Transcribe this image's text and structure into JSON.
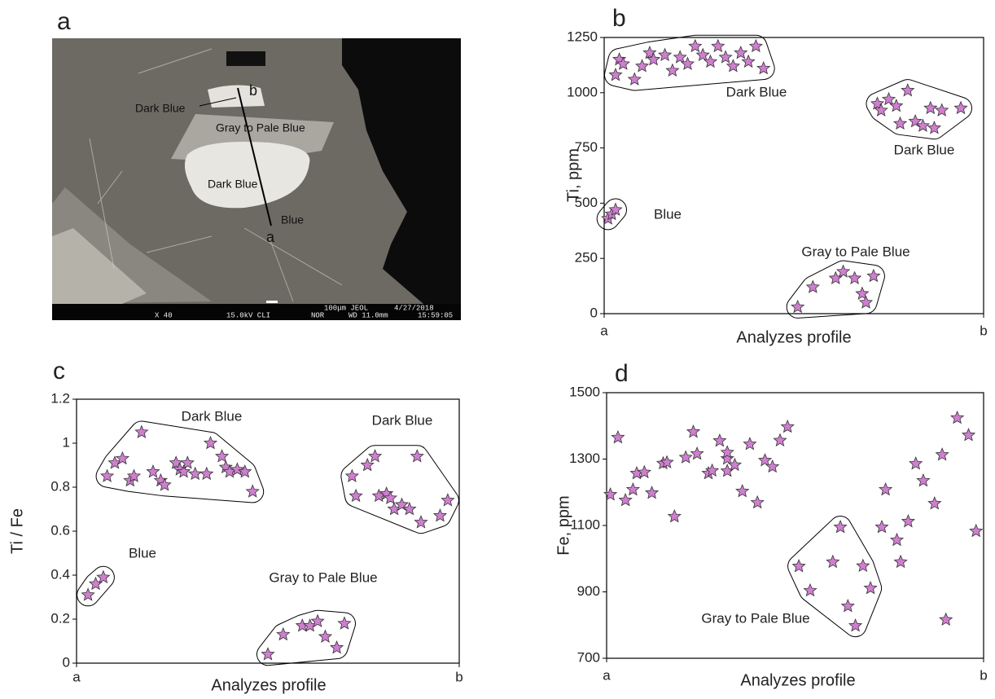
{
  "chart_data": [
    {
      "type": "micrograph",
      "panel": "a",
      "profile_start": "a",
      "profile_end": "b",
      "annotations": [
        "Dark Blue",
        "Gray to Pale Blue",
        "Dark Blue",
        "Blue"
      ],
      "footer": [
        "X 40",
        "15.0kV CLI",
        "NOR",
        "100μm JEOL",
        "WD 11.0mm",
        "4/27/2018",
        "15:59:05"
      ]
    },
    {
      "type": "scatter",
      "panel": "b",
      "ylabel": "Ti, ppm",
      "xlabel": "Analyzes profile",
      "xlim": [
        0,
        1
      ],
      "xticks": [
        {
          "value": 0,
          "label": "a"
        },
        {
          "value": 1,
          "label": "b"
        }
      ],
      "ylim": [
        0,
        1250
      ],
      "yticks": [
        0,
        250,
        500,
        750,
        1000,
        1250
      ],
      "series": [
        {
          "name": "Dark Blue",
          "color": "#cf7fcf",
          "x": [
            0.04,
            0.05,
            0.03,
            0.08,
            0.1,
            0.12,
            0.13,
            0.16,
            0.18,
            0.2,
            0.22,
            0.24,
            0.26,
            0.28,
            0.3,
            0.32,
            0.34,
            0.36,
            0.38,
            0.4,
            0.42
          ],
          "values": [
            1150,
            1130,
            1080,
            1060,
            1120,
            1180,
            1150,
            1170,
            1100,
            1160,
            1130,
            1210,
            1170,
            1140,
            1210,
            1160,
            1120,
            1180,
            1140,
            1210,
            1110
          ]
        },
        {
          "name": "Dark Blue",
          "color": "#cf7fcf",
          "x": [
            0.72,
            0.73,
            0.75,
            0.77,
            0.78,
            0.8,
            0.82,
            0.84,
            0.86,
            0.87,
            0.89,
            0.94
          ],
          "values": [
            950,
            920,
            970,
            940,
            860,
            1010,
            870,
            850,
            930,
            840,
            920,
            930
          ]
        },
        {
          "name": "Blue",
          "color": "#cf7fcf",
          "x": [
            0.01,
            0.02,
            0.03
          ],
          "values": [
            430,
            450,
            470
          ]
        },
        {
          "name": "Gray to Pale Blue",
          "color": "#cf7fcf",
          "x": [
            0.51,
            0.55,
            0.61,
            0.63,
            0.66,
            0.68,
            0.69,
            0.71
          ],
          "values": [
            30,
            120,
            160,
            190,
            160,
            90,
            50,
            170
          ]
        }
      ]
    },
    {
      "type": "scatter",
      "panel": "c",
      "ylabel": "Ti / Fe",
      "xlabel": "Analyzes profile",
      "xlim": [
        0,
        1
      ],
      "xticks": [
        {
          "value": 0,
          "label": "a"
        },
        {
          "value": 1,
          "label": "b"
        }
      ],
      "ylim": [
        0,
        1.2
      ],
      "yticks": [
        0,
        0.2,
        0.4,
        0.6,
        0.8,
        1,
        1.2
      ],
      "series": [
        {
          "name": "Dark Blue",
          "color": "#cf7fcf",
          "x": [
            0.08,
            0.1,
            0.12,
            0.14,
            0.15,
            0.17,
            0.2,
            0.22,
            0.23,
            0.26,
            0.27,
            0.28,
            0.29,
            0.31,
            0.35,
            0.34,
            0.38,
            0.39,
            0.4,
            0.42,
            0.44,
            0.46
          ],
          "values": [
            0.85,
            0.91,
            0.93,
            0.83,
            0.85,
            1.05,
            0.87,
            0.83,
            0.81,
            0.91,
            0.88,
            0.87,
            0.91,
            0.86,
            1.0,
            0.86,
            0.94,
            0.89,
            0.87,
            0.88,
            0.87,
            0.78
          ]
        },
        {
          "name": "Dark Blue",
          "color": "#cf7fcf",
          "x": [
            0.72,
            0.73,
            0.76,
            0.78,
            0.79,
            0.81,
            0.82,
            0.83,
            0.85,
            0.87,
            0.89,
            0.9,
            0.95,
            0.97
          ],
          "values": [
            0.85,
            0.76,
            0.9,
            0.94,
            0.76,
            0.77,
            0.75,
            0.7,
            0.72,
            0.7,
            0.94,
            0.64,
            0.67,
            0.74
          ]
        },
        {
          "name": "Blue",
          "color": "#cf7fcf",
          "x": [
            0.03,
            0.05,
            0.07
          ],
          "values": [
            0.31,
            0.36,
            0.39
          ]
        },
        {
          "name": "Gray to Pale Blue",
          "color": "#cf7fcf",
          "x": [
            0.5,
            0.54,
            0.59,
            0.61,
            0.63,
            0.65,
            0.68,
            0.7
          ],
          "values": [
            0.04,
            0.13,
            0.17,
            0.17,
            0.19,
            0.12,
            0.07,
            0.18
          ]
        }
      ]
    },
    {
      "type": "scatter",
      "panel": "d",
      "ylabel": "Fe, ppm",
      "xlabel": "Analyzes profile",
      "xlim": [
        0,
        1
      ],
      "xticks": [
        {
          "value": 0,
          "label": "a"
        },
        {
          "value": 1,
          "label": "b"
        }
      ],
      "ylim": [
        700,
        1500
      ],
      "yticks": [
        700,
        900,
        1100,
        1300,
        1500
      ],
      "series": [
        {
          "color": "#cf7fcf",
          "x": [
            0.01,
            0.03,
            0.05,
            0.07,
            0.08,
            0.1,
            0.12,
            0.15,
            0.16,
            0.18,
            0.21,
            0.23,
            0.24,
            0.27,
            0.28,
            0.3,
            0.32,
            0.32,
            0.34,
            0.36,
            0.38,
            0.4,
            0.42,
            0.44,
            0.46,
            0.48,
            0.32,
            0.73,
            0.74,
            0.77,
            0.78,
            0.8,
            0.82,
            0.84,
            0.87,
            0.89,
            0.9,
            0.93,
            0.96,
            0.98
          ],
          "values": [
            1193,
            1365,
            1176,
            1208,
            1257,
            1260,
            1198,
            1287,
            1290,
            1127,
            1305,
            1382,
            1316,
            1257,
            1265,
            1355,
            1301,
            1264,
            1282,
            1203,
            1345,
            1169,
            1296,
            1277,
            1356,
            1397,
            1320,
            1095,
            1208,
            1056,
            990,
            1112,
            1286,
            1235,
            1166,
            1313,
            816,
            1424,
            1372,
            1083
          ]
        },
        {
          "name": "Gray to Pale Blue",
          "color": "#cf7fcf",
          "x": [
            0.51,
            0.54,
            0.6,
            0.62,
            0.64,
            0.66,
            0.68,
            0.7
          ],
          "values": [
            977,
            904,
            990,
            1095,
            857,
            798,
            978,
            911
          ]
        }
      ]
    }
  ]
}
